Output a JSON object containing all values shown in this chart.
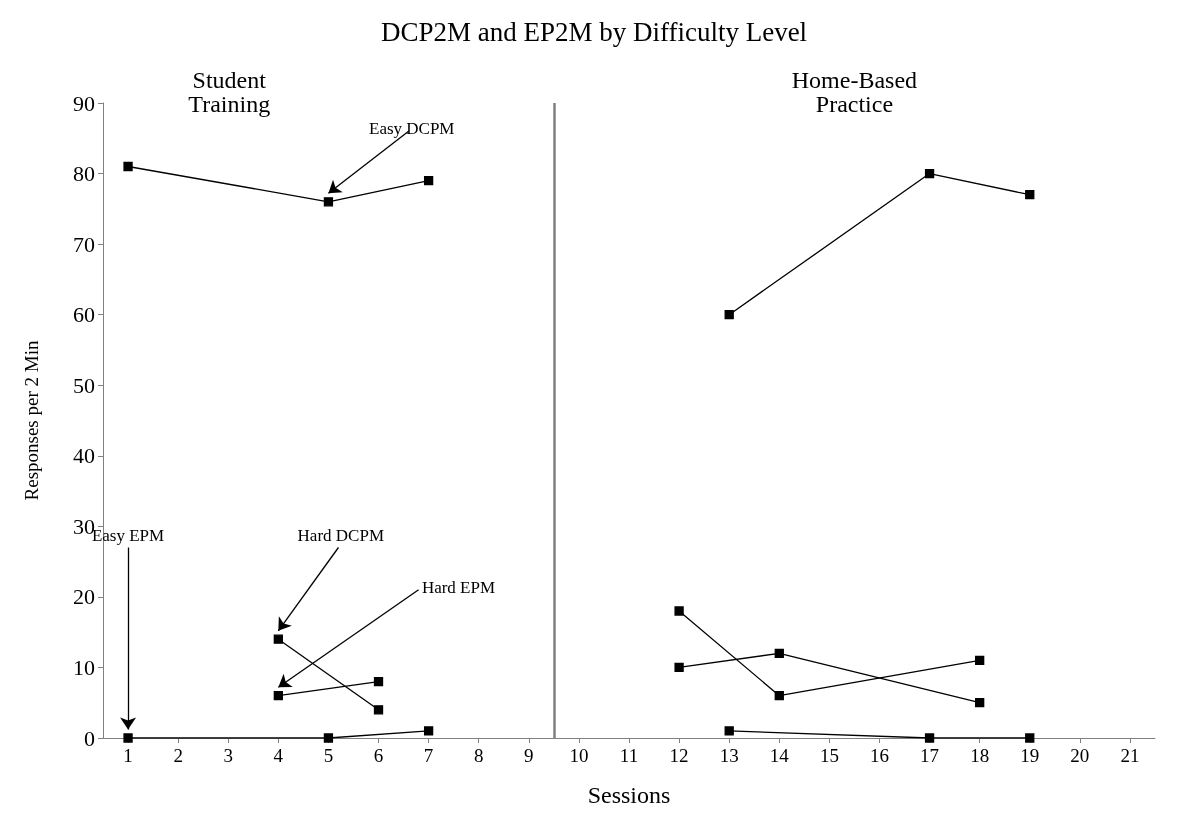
{
  "chart_data": {
    "type": "line",
    "title": "DCP2M and EP2M by Difficulty Level",
    "xlabel": "Sessions",
    "ylabel": "Responses per 2 Min",
    "xlim": [
      0.5,
      21.5
    ],
    "xticks": [
      1,
      2,
      3,
      4,
      5,
      6,
      7,
      8,
      9,
      10,
      11,
      12,
      13,
      14,
      15,
      16,
      17,
      18,
      19,
      20,
      21
    ],
    "ylim": [
      0,
      90
    ],
    "yticks": [
      0,
      10,
      20,
      30,
      40,
      50,
      60,
      70,
      80,
      90
    ],
    "grid": false,
    "marker": "square",
    "series": [
      {
        "color": "#000000",
        "x": [
          1,
          5,
          7
        ],
        "values": [
          81,
          76,
          79
        ]
      },
      {
        "color": "#000000",
        "x": [
          1,
          5,
          7
        ],
        "values": [
          0,
          0,
          1
        ]
      },
      {
        "color": "#000000",
        "x": [
          4,
          6
        ],
        "values": [
          14,
          4
        ]
      },
      {
        "color": "#000000",
        "x": [
          4,
          6
        ],
        "values": [
          6,
          8
        ]
      },
      {
        "color": "#000000",
        "x": [
          13,
          17,
          19
        ],
        "values": [
          60,
          80,
          77
        ]
      },
      {
        "color": "#000000",
        "x": [
          13,
          17,
          19
        ],
        "values": [
          1,
          0,
          0
        ]
      },
      {
        "color": "#000000",
        "x": [
          12,
          14,
          18
        ],
        "values": [
          18,
          6,
          11
        ]
      },
      {
        "color": "#000000",
        "x": [
          12,
          14,
          18
        ],
        "values": [
          10,
          12,
          5
        ]
      }
    ],
    "ref_lines": [
      {
        "axis": "x",
        "value": 9.5,
        "color": "#808080"
      }
    ],
    "annotations": [
      "Student\nTraining",
      "Home-Based\nPractice",
      {
        "text": "Easy DCPM",
        "x": 5,
        "y": 76
      },
      {
        "text": "Easy EPM",
        "x": 1,
        "y": 0
      },
      {
        "text": "Hard DCPM",
        "x": 4,
        "y": 14
      },
      {
        "text": "Hard EPM",
        "x": 4,
        "y": 6
      }
    ]
  }
}
